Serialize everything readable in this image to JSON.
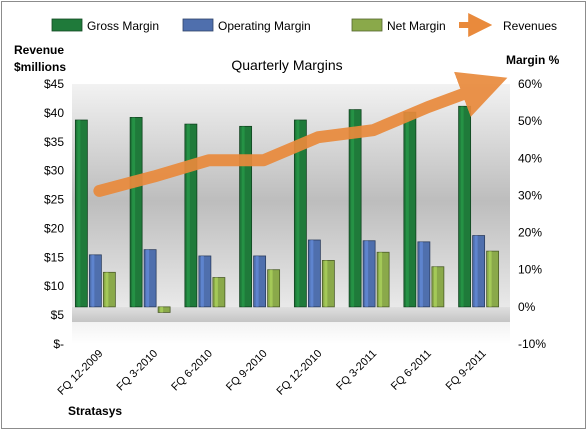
{
  "chart_data": {
    "type": "bar",
    "title": "Quarterly Margins",
    "ylabel_left": [
      "Revenue",
      "$millions"
    ],
    "ylabel_right": "Margin %",
    "footer": "Stratasys",
    "categories": [
      "FQ 12-2009",
      "FQ 3-2010",
      "FQ 6-2010",
      "FQ 9-2010",
      "FQ 12-2010",
      "FQ 3-2011",
      "FQ 6-2011",
      "FQ 9-2011"
    ],
    "left_ticks": [
      "$-",
      "$5",
      "$10",
      "$15",
      "$20",
      "$25",
      "$30",
      "$35",
      "$40",
      "$45"
    ],
    "right_ticks": [
      "-10%",
      "0%",
      "10%",
      "20%",
      "30%",
      "40%",
      "50%",
      "60%"
    ],
    "left_range": [
      0,
      45
    ],
    "right_range": [
      -10,
      60
    ],
    "series": [
      {
        "name": "Gross Margin",
        "axis": "right",
        "kind": "bar",
        "color": "#1f7a3a",
        "values": [
          50.3,
          51.0,
          49.2,
          48.6,
          50.3,
          53.1,
          52.4,
          54.0
        ]
      },
      {
        "name": "Operating Margin",
        "axis": "right",
        "kind": "bar",
        "color": "#4f6fad",
        "values": [
          14.0,
          15.4,
          13.7,
          13.7,
          18.0,
          17.8,
          17.5,
          19.2
        ]
      },
      {
        "name": "Net Margin",
        "axis": "right",
        "kind": "bar",
        "color": "#8aa94a",
        "values": [
          9.3,
          -1.5,
          7.9,
          10.0,
          12.5,
          14.7,
          10.8,
          15.0
        ]
      },
      {
        "name": "Revenues",
        "axis": "left",
        "kind": "line",
        "color": "#e98a3c",
        "values": [
          26.5,
          29.0,
          31.8,
          31.8,
          35.8,
          37.0,
          41.0,
          44.5
        ]
      }
    ],
    "legend_position": "top",
    "grid": false
  }
}
